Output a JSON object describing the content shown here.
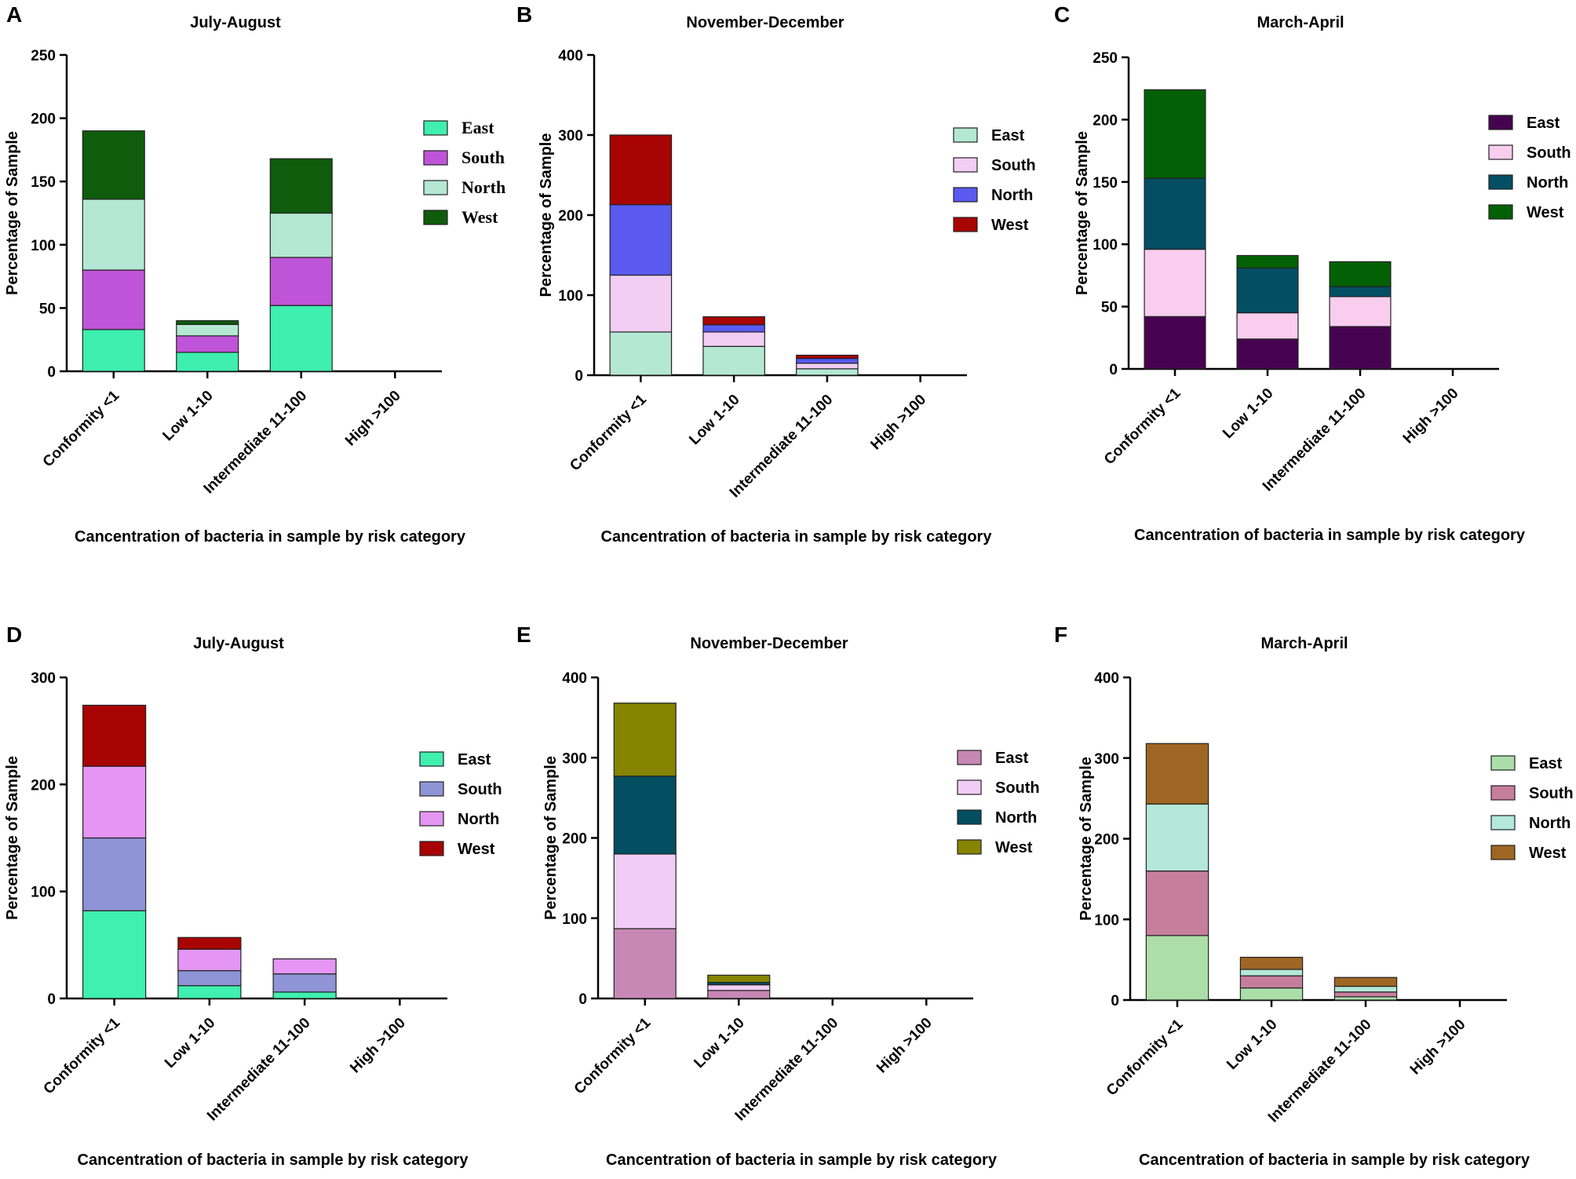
{
  "figure": {
    "caption_letters": [
      "A",
      "B",
      "C",
      "D",
      "E",
      "F"
    ]
  },
  "chart_data": [
    {
      "panel": "A",
      "type": "bar",
      "stacked": true,
      "title": "July-August",
      "xlabel": "Cancentration of bacteria in sample by risk category",
      "ylabel": "Percentage of Sample",
      "ylim": [
        0,
        250
      ],
      "yticks": [
        0,
        50,
        100,
        150,
        200,
        250
      ],
      "categories": [
        "Conformity <1",
        "Low 1-10",
        "Intermediate 11-100",
        "High >100"
      ],
      "series": [
        {
          "name": "East",
          "color": "#3fefb0",
          "values": [
            33,
            15,
            52,
            0
          ]
        },
        {
          "name": "South",
          "color": "#c054d8",
          "values": [
            47,
            13,
            38,
            0
          ]
        },
        {
          "name": "North",
          "color": "#b4e8d4",
          "values": [
            56,
            9,
            35,
            0
          ]
        },
        {
          "name": "West",
          "color": "#0e5c0c",
          "values": [
            54,
            3,
            43,
            0
          ]
        }
      ]
    },
    {
      "panel": "B",
      "type": "bar",
      "stacked": true,
      "title": "November-December",
      "xlabel": "Cancentration of bacteria in sample by risk category",
      "ylabel": "Percentage of Sample",
      "ylim": [
        0,
        400
      ],
      "yticks": [
        0,
        100,
        200,
        300,
        400
      ],
      "categories": [
        "Conformity <1",
        "Low 1-10",
        "Intermediate 11-100",
        "High >100"
      ],
      "series": [
        {
          "name": "East",
          "color": "#b4e8d4",
          "values": [
            54,
            36,
            8,
            0
          ]
        },
        {
          "name": "South",
          "color": "#f2cdf4",
          "values": [
            71,
            18,
            7,
            0
          ]
        },
        {
          "name": "North",
          "color": "#5a5af0",
          "values": [
            88,
            9,
            6,
            0
          ]
        },
        {
          "name": "West",
          "color": "#a80404",
          "values": [
            87,
            10,
            4,
            0
          ]
        }
      ]
    },
    {
      "panel": "C",
      "type": "bar",
      "stacked": true,
      "title": "March-April",
      "xlabel": "Cancentration of bacteria in sample by risk category",
      "ylabel": "Percentage of Sample",
      "ylim": [
        0,
        250
      ],
      "yticks": [
        0,
        50,
        100,
        150,
        200,
        250
      ],
      "categories": [
        "Conformity <1",
        "Low 1-10",
        "Intermediate 11-100",
        "High >100"
      ],
      "series": [
        {
          "name": "East",
          "color": "#460450",
          "values": [
            42,
            24,
            34,
            0
          ]
        },
        {
          "name": "South",
          "color": "#f8cdee",
          "values": [
            54,
            21,
            24,
            0
          ]
        },
        {
          "name": "North",
          "color": "#044e64",
          "values": [
            57,
            36,
            8,
            0
          ]
        },
        {
          "name": "West",
          "color": "#046004",
          "values": [
            71,
            10,
            20,
            0
          ]
        }
      ]
    },
    {
      "panel": "D",
      "type": "bar",
      "stacked": true,
      "title": "July-August",
      "xlabel": "Cancentration of bacteria in sample by risk category",
      "ylabel": "Percentage of Sample",
      "ylim": [
        0,
        300
      ],
      "yticks": [
        0,
        100,
        200,
        300
      ],
      "categories": [
        "Conformity <1",
        "Low 1-10",
        "Intermediate 11-100",
        "High >100"
      ],
      "series": [
        {
          "name": "East",
          "color": "#3ff0b0",
          "values": [
            82,
            12,
            6,
            0
          ]
        },
        {
          "name": "South",
          "color": "#8e94d6",
          "values": [
            68,
            14,
            17,
            0
          ]
        },
        {
          "name": "North",
          "color": "#e596f4",
          "values": [
            67,
            20,
            14,
            0
          ]
        },
        {
          "name": "West",
          "color": "#a80404",
          "values": [
            57,
            11,
            0,
            0
          ]
        }
      ]
    },
    {
      "panel": "E",
      "type": "bar",
      "stacked": true,
      "title": "November-December",
      "xlabel": "Cancentration of bacteria in sample by risk category",
      "ylabel": "Percentage of Sample",
      "ylim": [
        0,
        400
      ],
      "yticks": [
        0,
        100,
        200,
        300,
        400
      ],
      "categories": [
        "Conformity <1",
        "Low 1-10",
        "Intermediate 11-100",
        "High >100"
      ],
      "series": [
        {
          "name": "East",
          "color": "#c888b6",
          "values": [
            87,
            10,
            0,
            0
          ]
        },
        {
          "name": "South",
          "color": "#f0cdf4",
          "values": [
            93,
            7,
            0,
            0
          ]
        },
        {
          "name": "North",
          "color": "#044e62",
          "values": [
            97,
            3,
            0,
            0
          ]
        },
        {
          "name": "West",
          "color": "#868400",
          "values": [
            91,
            9,
            0,
            0
          ]
        }
      ]
    },
    {
      "panel": "F",
      "type": "bar",
      "stacked": true,
      "title": "March-April",
      "xlabel": "Cancentration of bacteria in sample by risk category",
      "ylabel": "Percentage of Sample",
      "ylim": [
        0,
        400
      ],
      "yticks": [
        0,
        100,
        200,
        300,
        400
      ],
      "categories": [
        "Conformity <1",
        "Low 1-10",
        "Intermediate 11-100",
        "High >100"
      ],
      "series": [
        {
          "name": "East",
          "color": "#acdeaa",
          "values": [
            80,
            15,
            4,
            0
          ]
        },
        {
          "name": "South",
          "color": "#c67e9c",
          "values": [
            80,
            15,
            6,
            0
          ]
        },
        {
          "name": "North",
          "color": "#b4e8d8",
          "values": [
            83,
            8,
            7,
            0
          ]
        },
        {
          "name": "West",
          "color": "#9e6622",
          "values": [
            75,
            15,
            11,
            0
          ]
        }
      ]
    }
  ]
}
